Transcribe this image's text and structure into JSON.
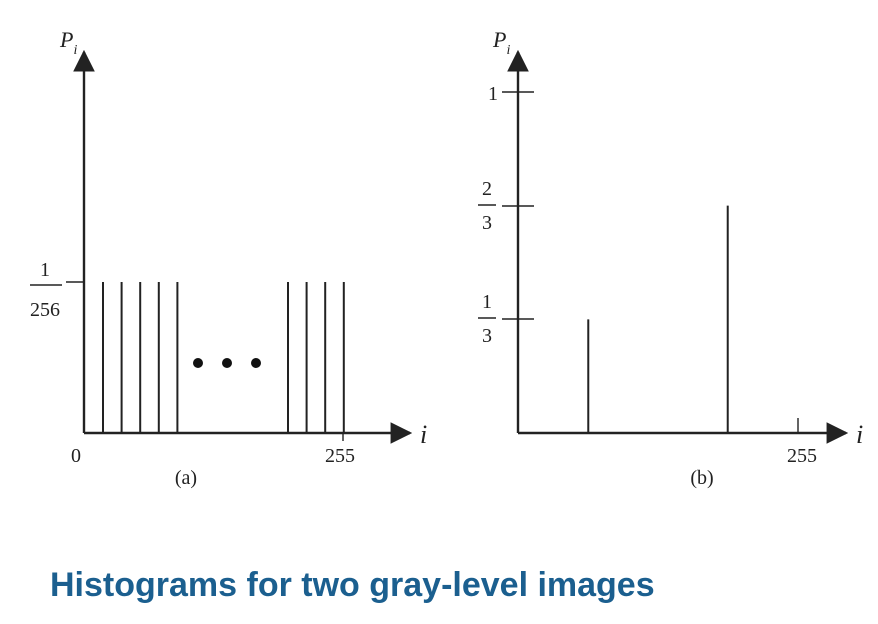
{
  "caption": "Histograms for two gray-level images",
  "chart_data": [
    {
      "type": "bar",
      "panel_label": "(a)",
      "ylabel": "P",
      "ylabel_sub": "i",
      "xlabel": "i",
      "x_tick_labels": [
        "0",
        "255"
      ],
      "y_tick_label": {
        "num": "1",
        "den": "256"
      },
      "left_group_count": 5,
      "right_group_count": 4,
      "bar_value": 0.00390625,
      "ellipsis_dots": 3
    },
    {
      "type": "bar",
      "panel_label": "(b)",
      "ylabel": "P",
      "ylabel_sub": "i",
      "xlabel": "i",
      "x_tick_labels": [
        "255"
      ],
      "y_ticks": [
        {
          "label_num": "1",
          "label_den": "3",
          "value": 0.3333
        },
        {
          "label_num": "2",
          "label_den": "3",
          "value": 0.6667
        },
        {
          "label": "1",
          "value": 1
        }
      ],
      "bars": [
        {
          "x": 64,
          "value": 0.3333
        },
        {
          "x": 191,
          "value": 0.6667
        }
      ],
      "xlim": [
        0,
        255
      ],
      "ylim": [
        0,
        1
      ]
    }
  ]
}
